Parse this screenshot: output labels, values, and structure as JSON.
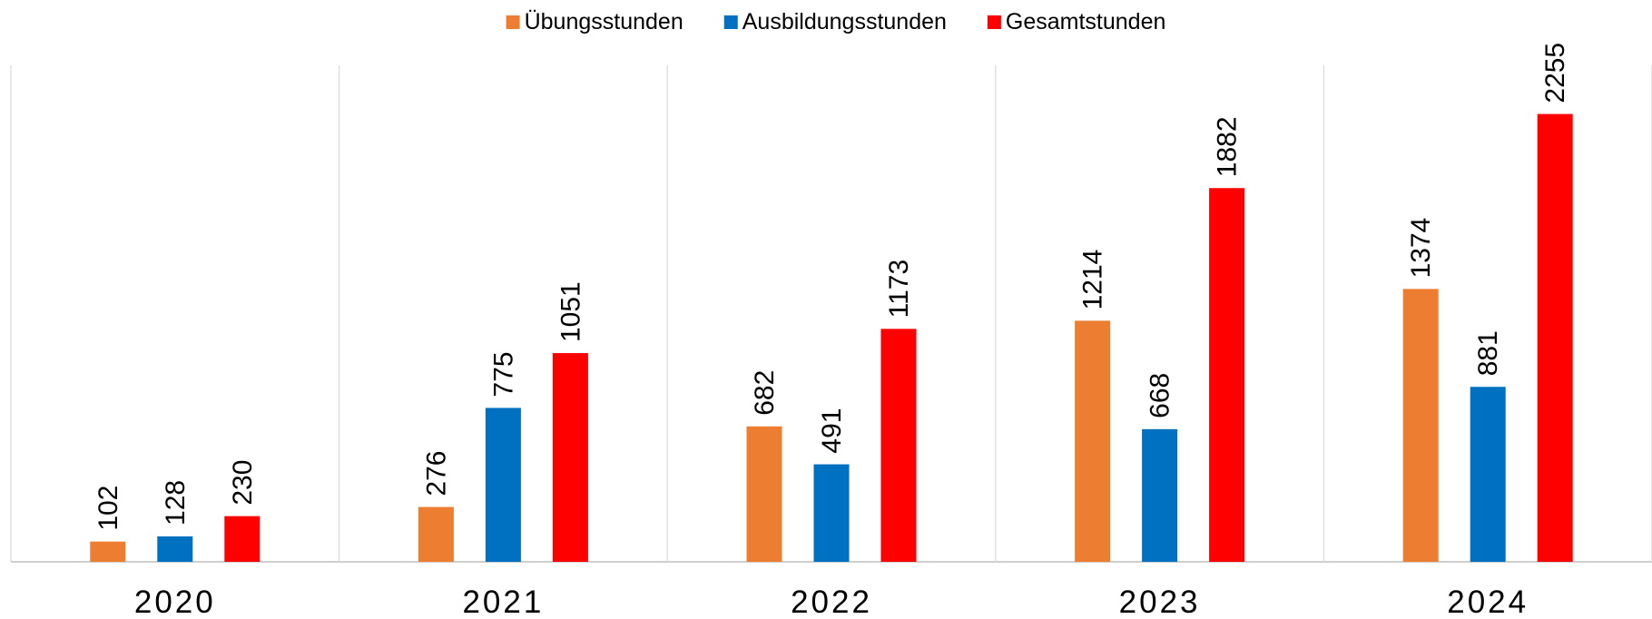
{
  "chart_data": {
    "type": "bar",
    "categories": [
      "2020",
      "2021",
      "2022",
      "2023",
      "2024"
    ],
    "series": [
      {
        "name": "Übungsstunden",
        "color": "#ed7d31",
        "values": [
          102,
          276,
          682,
          1214,
          1374
        ]
      },
      {
        "name": "Ausbildungsstunden",
        "color": "#0070c0",
        "values": [
          128,
          775,
          491,
          668,
          881
        ]
      },
      {
        "name": "Gesamtstunden",
        "color": "#ff0000",
        "values": [
          230,
          1051,
          1173,
          1882,
          2255
        ]
      }
    ],
    "ylim": [
      0,
      2500
    ],
    "legend": "top"
  }
}
